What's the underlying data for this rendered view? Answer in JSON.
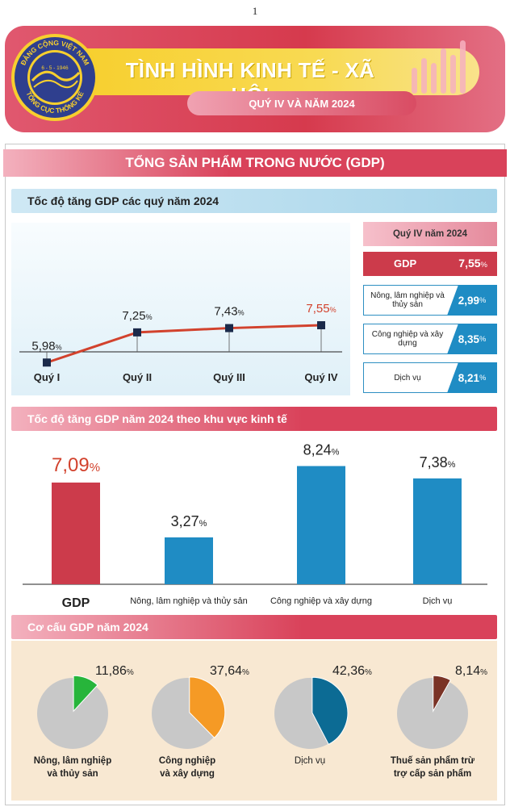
{
  "page_number": "1",
  "header": {
    "title": "TÌNH HÌNH KINH TẾ - XÃ HỘI",
    "subtitle": "QUÝ IV VÀ NĂM 2024",
    "logo": {
      "top_text": "ĐẢNG CỘNG VIỆT NAM",
      "date_text": "6 - 5 - 1946",
      "bottom_text": "TỔNG CỤC THỐNG KÊ"
    }
  },
  "section_title": "TỔNG SẢN PHẨM TRONG NƯỚC (GDP)",
  "colors": {
    "red": "#cc3b4b",
    "blue": "#1f8cc4",
    "green": "#27b53b",
    "orange": "#f59a25",
    "dark_blue": "#0c6b94",
    "brown": "#7a3326",
    "gray": "#c8c8c8"
  },
  "chart_data": [
    {
      "type": "line",
      "title": "Tốc độ tăng GDP các quý năm 2024",
      "categories": [
        "Quý I",
        "Quý II",
        "Quý III",
        "Quý IV"
      ],
      "values": [
        5.98,
        7.25,
        7.43,
        7.55
      ],
      "labels": [
        "5,98",
        "7,25",
        "7,43",
        "7,55"
      ],
      "unit": "%",
      "ylim": [
        4.8,
        8.4
      ]
    },
    {
      "type": "table",
      "title": "Quý IV năm 2024",
      "rows": [
        {
          "label": "GDP",
          "value": "7,55",
          "unit": "%"
        },
        {
          "label": "Nông, lâm nghiệp và thủy sản",
          "value": "2,99",
          "unit": "%"
        },
        {
          "label": "Công nghiệp và xây dựng",
          "value": "8,35",
          "unit": "%"
        },
        {
          "label": "Dịch vụ",
          "value": "8,21",
          "unit": "%"
        }
      ]
    },
    {
      "type": "bar",
      "title": "Tốc độ tăng GDP năm 2024 theo khu vực kinh tế",
      "categories": [
        "GDP",
        "Nông, lâm nghiệp và thủy sản",
        "Công nghiệp và xây dựng",
        "Dịch vụ"
      ],
      "values": [
        7.09,
        3.27,
        8.24,
        7.38
      ],
      "labels": [
        "7,09",
        "3,27",
        "8,24",
        "7,38"
      ],
      "unit": "%",
      "ylim": [
        0,
        9
      ]
    },
    {
      "type": "pie",
      "title": "Cơ cấu GDP năm 2024",
      "slices": [
        {
          "name": "Nông, lâm nghiệp và thủy sản",
          "value": 11.86,
          "label": "11,86"
        },
        {
          "name": "Công nghiệp và xây dựng",
          "value": 37.64,
          "label": "37,64"
        },
        {
          "name": "Dịch vụ",
          "value": 42.36,
          "label": "42,36"
        },
        {
          "name": "Thuế sản phẩm trừ trợ cấp sản phẩm",
          "value": 8.14,
          "label": "8,14"
        }
      ],
      "unit": "%"
    }
  ]
}
